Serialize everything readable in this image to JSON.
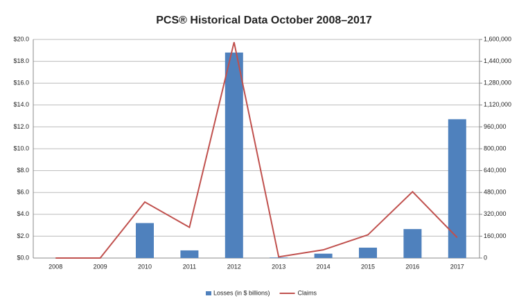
{
  "chart_data": {
    "type": "bar_line",
    "title": "PCS® Historical Data October 2008–2017",
    "categories": [
      "2008",
      "2009",
      "2010",
      "2011",
      "2012",
      "2013",
      "2014",
      "2015",
      "2016",
      "2017"
    ],
    "series": [
      {
        "name": "Losses (in $ billions)",
        "type": "bar",
        "color": "#4f81bd",
        "values": [
          0,
          0,
          3.2,
          0.7,
          18.8,
          0.05,
          0.4,
          0.95,
          2.65,
          12.7
        ]
      },
      {
        "name": "Claims",
        "type": "line",
        "color": "#c0504d",
        "axis": "y2",
        "values": [
          0,
          0,
          410000,
          225000,
          1580000,
          8000,
          60000,
          170000,
          485000,
          150000
        ]
      }
    ],
    "ylim": [
      0,
      20
    ],
    "yticks": [
      {
        "value": 0,
        "label": "$0.0"
      },
      {
        "value": 2,
        "label": "$2.0"
      },
      {
        "value": 4,
        "label": "$4.0"
      },
      {
        "value": 6,
        "label": "$6.0"
      },
      {
        "value": 8,
        "label": "$8.0"
      },
      {
        "value": 10,
        "label": "$10.0"
      },
      {
        "value": 12,
        "label": "$12.0"
      },
      {
        "value": 14,
        "label": "$14.0"
      },
      {
        "value": 16,
        "label": "$16.0"
      },
      {
        "value": 18,
        "label": "$18.0"
      },
      {
        "value": 20,
        "label": "$20.0"
      }
    ],
    "y2lim": [
      0,
      1600000
    ],
    "y2ticks": [
      0,
      {
        "value": 160000,
        "label": "160,000"
      },
      {
        "value": 320000,
        "label": "320,000"
      },
      {
        "value": 480000,
        "label": "480,000"
      },
      {
        "value": 640000,
        "label": "640,000"
      },
      {
        "value": 800000,
        "label": "800,000"
      },
      {
        "value": 960000,
        "label": "960,000"
      },
      {
        "value": 1120000,
        "label": "1,120,000"
      },
      {
        "value": 1280000,
        "label": "1,280,000"
      },
      {
        "value": 1440000,
        "label": "1,440,000"
      },
      {
        "value": 1600000,
        "label": "1,600,000"
      }
    ],
    "grid": true,
    "legend": "bottom"
  }
}
